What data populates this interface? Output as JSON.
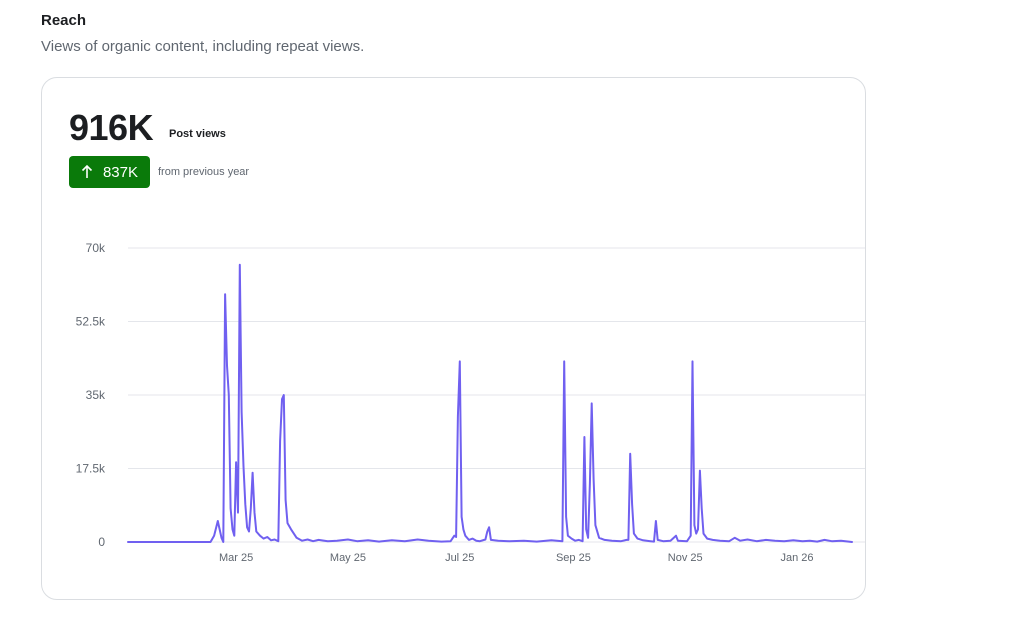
{
  "section": {
    "title": "Reach",
    "description": "Views of organic content, including repeat views."
  },
  "metric": {
    "value": "916K",
    "label": "Post views",
    "change": {
      "value": "837K",
      "direction": "up",
      "caption": "from previous year",
      "color": "#0a7a0a",
      "icon": "arrow-up-icon"
    }
  },
  "colors": {
    "line": "#7060f0",
    "grid": "#e4e6eb"
  },
  "chart_data": {
    "type": "line",
    "title": "",
    "xlabel": "",
    "ylabel": "",
    "ylim": [
      0,
      70000
    ],
    "grid": true,
    "y_ticks": [
      0,
      17500,
      35000,
      52500,
      70000
    ],
    "y_tick_labels": [
      "0",
      "17.5k",
      "35k",
      "52.5k",
      "70k"
    ],
    "x_tick_labels": [
      "Mar 25",
      "May 25",
      "Jul 25",
      "Sep 25",
      "Nov 25",
      "Jan 26"
    ],
    "x_tick_dates": [
      "2025-03-01",
      "2025-05-01",
      "2025-07-01",
      "2025-09-01",
      "2025-11-01",
      "2026-01-01"
    ],
    "x_range": [
      "2025-01-01",
      "2026-01-31"
    ],
    "series": [
      {
        "points": [
          [
            "2025-01-01",
            0
          ],
          [
            "2025-02-15",
            0
          ],
          [
            "2025-02-17",
            1500
          ],
          [
            "2025-02-19",
            5000
          ],
          [
            "2025-02-21",
            1000
          ],
          [
            "2025-02-22",
            0
          ],
          [
            "2025-02-23",
            59000
          ],
          [
            "2025-02-24",
            42000
          ],
          [
            "2025-02-25",
            35000
          ],
          [
            "2025-02-26",
            8000
          ],
          [
            "2025-02-27",
            3000
          ],
          [
            "2025-02-28",
            1500
          ],
          [
            "2025-03-01",
            19000
          ],
          [
            "2025-03-02",
            7000
          ],
          [
            "2025-03-03",
            66000
          ],
          [
            "2025-03-04",
            31000
          ],
          [
            "2025-03-05",
            18000
          ],
          [
            "2025-03-06",
            9000
          ],
          [
            "2025-03-07",
            3500
          ],
          [
            "2025-03-08",
            2500
          ],
          [
            "2025-03-09",
            8000
          ],
          [
            "2025-03-10",
            16500
          ],
          [
            "2025-03-11",
            7000
          ],
          [
            "2025-03-12",
            2500
          ],
          [
            "2025-03-14",
            1500
          ],
          [
            "2025-03-16",
            800
          ],
          [
            "2025-03-18",
            1200
          ],
          [
            "2025-03-20",
            400
          ],
          [
            "2025-03-22",
            600
          ],
          [
            "2025-03-24",
            200
          ],
          [
            "2025-03-25",
            24000
          ],
          [
            "2025-03-26",
            34000
          ],
          [
            "2025-03-27",
            35000
          ],
          [
            "2025-03-28",
            10000
          ],
          [
            "2025-03-29",
            4500
          ],
          [
            "2025-03-31",
            3000
          ],
          [
            "2025-04-03",
            1000
          ],
          [
            "2025-04-06",
            300
          ],
          [
            "2025-04-09",
            600
          ],
          [
            "2025-04-12",
            200
          ],
          [
            "2025-04-15",
            500
          ],
          [
            "2025-04-20",
            200
          ],
          [
            "2025-04-25",
            300
          ],
          [
            "2025-05-01",
            600
          ],
          [
            "2025-05-06",
            200
          ],
          [
            "2025-05-12",
            400
          ],
          [
            "2025-05-18",
            100
          ],
          [
            "2025-05-25",
            400
          ],
          [
            "2025-06-01",
            200
          ],
          [
            "2025-06-08",
            600
          ],
          [
            "2025-06-14",
            300
          ],
          [
            "2025-06-21",
            100
          ],
          [
            "2025-06-26",
            200
          ],
          [
            "2025-06-28",
            1500
          ],
          [
            "2025-06-29",
            1200
          ],
          [
            "2025-06-30",
            30000
          ],
          [
            "2025-07-01",
            43000
          ],
          [
            "2025-07-02",
            6000
          ],
          [
            "2025-07-03",
            3000
          ],
          [
            "2025-07-04",
            1500
          ],
          [
            "2025-07-06",
            500
          ],
          [
            "2025-07-08",
            800
          ],
          [
            "2025-07-10",
            300
          ],
          [
            "2025-07-12",
            200
          ],
          [
            "2025-07-15",
            600
          ],
          [
            "2025-07-16",
            2500
          ],
          [
            "2025-07-17",
            3500
          ],
          [
            "2025-07-18",
            500
          ],
          [
            "2025-07-22",
            300
          ],
          [
            "2025-07-28",
            200
          ],
          [
            "2025-08-05",
            300
          ],
          [
            "2025-08-12",
            100
          ],
          [
            "2025-08-20",
            400
          ],
          [
            "2025-08-26",
            200
          ],
          [
            "2025-08-27",
            43000
          ],
          [
            "2025-08-28",
            6000
          ],
          [
            "2025-08-29",
            1500
          ],
          [
            "2025-08-31",
            800
          ],
          [
            "2025-09-02",
            300
          ],
          [
            "2025-09-04",
            500
          ],
          [
            "2025-09-06",
            200
          ],
          [
            "2025-09-07",
            25000
          ],
          [
            "2025-09-08",
            3000
          ],
          [
            "2025-09-09",
            1000
          ],
          [
            "2025-09-10",
            14000
          ],
          [
            "2025-09-11",
            33000
          ],
          [
            "2025-09-12",
            15000
          ],
          [
            "2025-09-13",
            4000
          ],
          [
            "2025-09-15",
            1000
          ],
          [
            "2025-09-18",
            500
          ],
          [
            "2025-09-22",
            300
          ],
          [
            "2025-09-27",
            200
          ],
          [
            "2025-09-30",
            500
          ],
          [
            "2025-10-01",
            500
          ],
          [
            "2025-10-02",
            21000
          ],
          [
            "2025-10-03",
            9000
          ],
          [
            "2025-10-04",
            2000
          ],
          [
            "2025-10-06",
            800
          ],
          [
            "2025-10-09",
            400
          ],
          [
            "2025-10-13",
            200
          ],
          [
            "2025-10-15",
            100
          ],
          [
            "2025-10-16",
            5000
          ],
          [
            "2025-10-17",
            500
          ],
          [
            "2025-10-20",
            200
          ],
          [
            "2025-10-24",
            300
          ],
          [
            "2025-10-27",
            1500
          ],
          [
            "2025-10-28",
            300
          ],
          [
            "2025-11-02",
            200
          ],
          [
            "2025-11-04",
            1500
          ],
          [
            "2025-11-05",
            43000
          ],
          [
            "2025-11-06",
            4000
          ],
          [
            "2025-11-07",
            2000
          ],
          [
            "2025-11-08",
            3000
          ],
          [
            "2025-11-09",
            17000
          ],
          [
            "2025-11-10",
            8000
          ],
          [
            "2025-11-11",
            2000
          ],
          [
            "2025-11-13",
            800
          ],
          [
            "2025-11-16",
            500
          ],
          [
            "2025-11-20",
            300
          ],
          [
            "2025-11-25",
            200
          ],
          [
            "2025-11-28",
            1000
          ],
          [
            "2025-12-01",
            300
          ],
          [
            "2025-12-05",
            600
          ],
          [
            "2025-12-10",
            200
          ],
          [
            "2025-12-15",
            500
          ],
          [
            "2025-12-20",
            300
          ],
          [
            "2025-12-25",
            200
          ],
          [
            "2025-12-30",
            400
          ],
          [
            "2026-01-04",
            200
          ],
          [
            "2026-01-08",
            300
          ],
          [
            "2026-01-12",
            100
          ],
          [
            "2026-01-16",
            500
          ],
          [
            "2026-01-20",
            200
          ],
          [
            "2026-01-25",
            300
          ],
          [
            "2026-01-31",
            0
          ]
        ]
      }
    ]
  }
}
